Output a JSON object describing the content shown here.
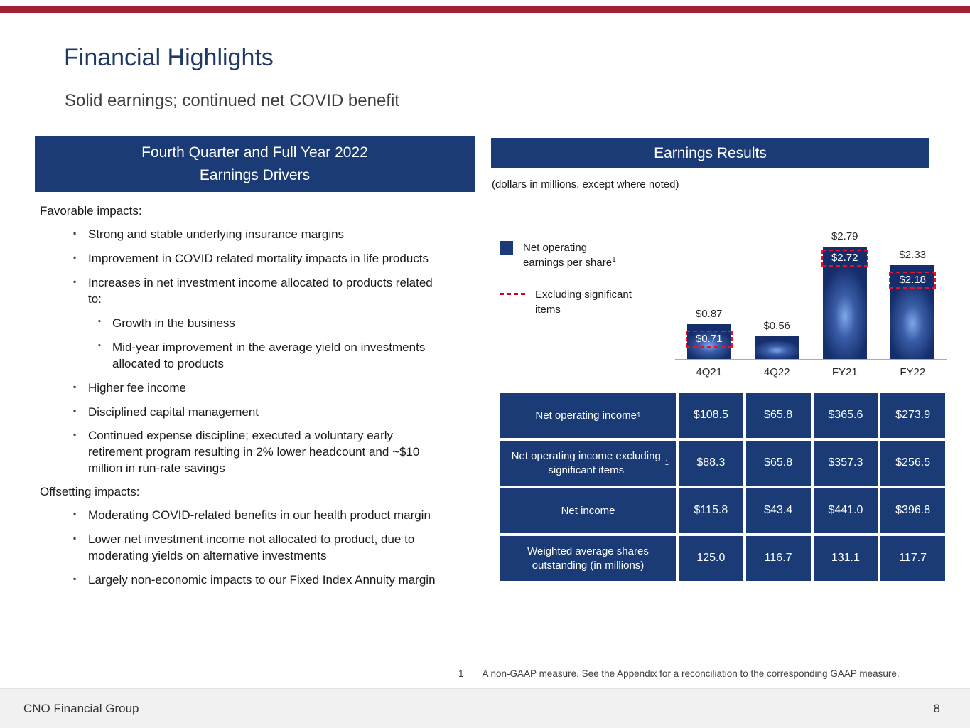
{
  "colors": {
    "navy": "#1A3B76",
    "title_navy": "#1F3864",
    "top_bar_red": "#A32035",
    "dashed_red": "#E8112D"
  },
  "slide": {
    "title": "Financial Highlights",
    "subtitle": "Solid earnings; continued net COVID benefit",
    "footnote_marker": "1",
    "footnote_text": "A non-GAAP measure. See the Appendix for a reconciliation to the corresponding GAAP measure.",
    "footer_company": "CNO Financial Group",
    "footer_page": "8"
  },
  "left_panel": {
    "header_line1": "Fourth Quarter and Full Year 2022",
    "header_line2": "Earnings Drivers",
    "sections": [
      {
        "heading": "Favorable impacts:",
        "bullets": [
          {
            "text": "Strong and stable underlying insurance margins"
          },
          {
            "text": "Improvement in COVID related mortality impacts in life products"
          },
          {
            "text": "Increases in net investment income allocated to products related to:",
            "sub": [
              "Growth in the business",
              "Mid-year improvement in the average yield on investments allocated to products"
            ]
          },
          {
            "text": "Higher fee income"
          },
          {
            "text": "Disciplined capital management"
          },
          {
            "text": "Continued expense discipline; executed a voluntary early retirement program resulting in 2% lower headcount and ~$10 million in run-rate savings"
          }
        ]
      },
      {
        "heading": "Offsetting impacts:",
        "bullets": [
          {
            "text": "Moderating COVID-related benefits in our health product margin"
          },
          {
            "text": "Lower net investment income not allocated to product, due to moderating yields on alternative investments"
          },
          {
            "text": "Largely non-economic impacts to our Fixed Index Annuity margin"
          }
        ]
      }
    ]
  },
  "right_panel": {
    "header": "Earnings Results",
    "caption": "(dollars in millions, except where noted)",
    "table": {
      "rows": [
        {
          "label": "Net operating income",
          "sup": "1",
          "values": [
            "$108.5",
            "$65.8",
            "$365.6",
            "$273.9"
          ]
        },
        {
          "label": "Net operating income excluding significant items",
          "sup": "1",
          "values": [
            "$88.3",
            "$65.8",
            "$357.3",
            "$256.5"
          ]
        },
        {
          "label": "Net income",
          "sup": "",
          "values": [
            "$115.8",
            "$43.4",
            "$441.0",
            "$396.8"
          ]
        },
        {
          "label": "Weighted average shares outstanding (in millions)",
          "sup": "",
          "values": [
            "125.0",
            "116.7",
            "131.1",
            "117.7"
          ]
        }
      ]
    }
  },
  "chart_data": {
    "type": "bar",
    "title": "Net operating earnings per share",
    "categories": [
      "4Q21",
      "4Q22",
      "FY21",
      "FY22"
    ],
    "series": [
      {
        "name": "Net operating earnings per share",
        "values": [
          0.87,
          0.56,
          2.79,
          2.33
        ],
        "labels": [
          "$0.87",
          "$0.56",
          "$2.79",
          "$2.33"
        ]
      },
      {
        "name": "Excluding significant items",
        "values": [
          0.71,
          null,
          2.72,
          2.18
        ],
        "labels": [
          "$0.71",
          null,
          "$2.72",
          "$2.18"
        ]
      }
    ],
    "ylim": [
      0,
      3
    ],
    "grid": false,
    "legend_position": "left",
    "legend": [
      {
        "swatch": "square",
        "label": "Net operating earnings per share",
        "sup": "1"
      },
      {
        "swatch": "dashed",
        "label": "Excluding significant items",
        "sup": ""
      }
    ]
  }
}
